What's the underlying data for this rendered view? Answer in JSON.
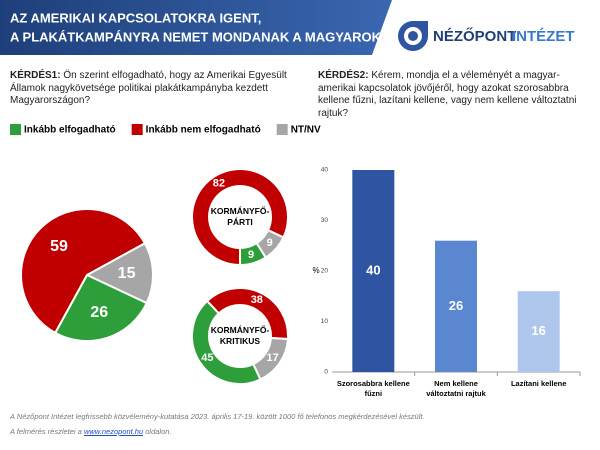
{
  "header": {
    "title_lines": [
      "AZ AMERIKAI KAPCSOLATOKRA IGENT,",
      "A PLAKÁTKAMPÁNYRA NEMET MONDANAK A MAGYAROK"
    ]
  },
  "logo": {
    "name1": "NÉZŐPONT",
    "name2": "INTÉZET"
  },
  "footer": {
    "line1": "A Nézőpont Intézet legfrissebb közvélemény-kutatása 2023. április 17-19. között 1000 fő telefonos megkérdezésével készült.",
    "line2_before": "A felmérés részletei a",
    "link": "www.nezopont.hu",
    "line2_after": "oldalon."
  },
  "chart_data": [
    {
      "type": "pie",
      "title": "KÉRDÉS1:",
      "subtitle": "Ön szerint elfogadható, hogy az Amerikai Egyesült Államok nagykövetsége politikai plakátkampányba kezdett Magyarországon?",
      "categories": [
        "Inkább elfogadható",
        "Inkább nem elfogadható",
        "NT/NV"
      ],
      "values": [
        26,
        59,
        15
      ],
      "colors": [
        "#2e9e3a",
        "#c00000",
        "#a6a6a6"
      ],
      "legend": "top"
    },
    {
      "type": "donut",
      "label_lines": [
        "KORMÁNYFŐ-",
        "PÁRTI"
      ],
      "values": [
        9,
        82,
        9
      ],
      "colors": [
        "#2e9e3a",
        "#c00000",
        "#a6a6a6"
      ]
    },
    {
      "type": "donut",
      "label_lines": [
        "KORMÁNYFŐ-",
        "KRITIKUS"
      ],
      "values": [
        45,
        38,
        17
      ],
      "colors": [
        "#2e9e3a",
        "#c00000",
        "#a6a6a6"
      ]
    },
    {
      "type": "bar",
      "title": "KÉRDÉS2:",
      "subtitle": "Kérem, mondja el a véleményét a magyar-amerikai kapcsolatok jövőjéről, hogy azokat szorosabbra kellene fűzni, lazítani kellene, vagy nem kellene változtatni rajtuk?",
      "categories": [
        [
          "Szorosabbra kellene",
          "fűzni"
        ],
        [
          "Nem kellene",
          "változtatni rajtuk"
        ],
        [
          "Lazítani kellene"
        ]
      ],
      "values": [
        40,
        26,
        16
      ],
      "colors": [
        "#2e54a2",
        "#5b86d0",
        "#afc6ec"
      ],
      "ylabel": "%",
      "ylim": [
        0,
        40
      ],
      "yticks": [
        0,
        10,
        20,
        30,
        40
      ],
      "grid": false
    }
  ]
}
